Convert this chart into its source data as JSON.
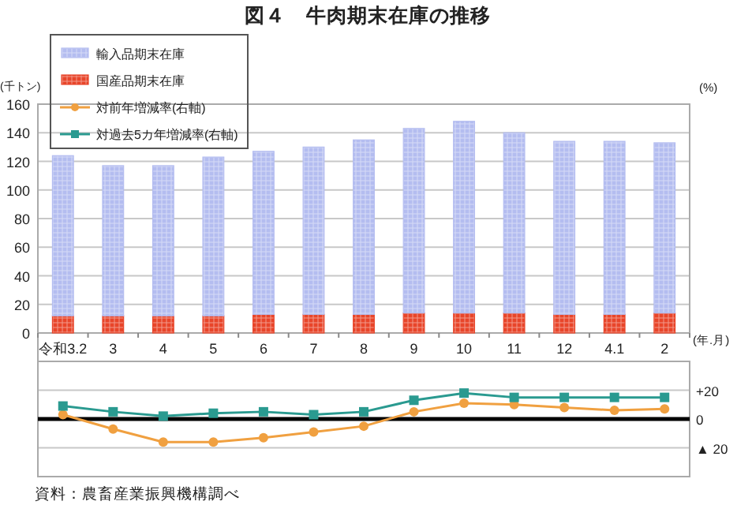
{
  "chart_data": [
    {
      "type": "bar",
      "title": "図４　牛肉期末在庫の推移",
      "ylabel": "(千トン)",
      "y2label": "(%)",
      "xlabel": "(年.月)",
      "categories": [
        "令和3.2",
        "3",
        "4",
        "5",
        "6",
        "7",
        "8",
        "9",
        "10",
        "11",
        "12",
        "4.1",
        "2"
      ],
      "stacked": true,
      "series": [
        {
          "name": "国産品期末在庫",
          "color": "#e8452a",
          "values": [
            12,
            12,
            12,
            12,
            13,
            13,
            13,
            14,
            14,
            14,
            13,
            13,
            14
          ]
        },
        {
          "name": "輸入品期末在庫",
          "color": "#b4bdf0",
          "values": [
            112,
            105,
            105,
            111,
            114,
            117,
            122,
            129,
            134,
            126,
            121,
            121,
            119
          ]
        }
      ],
      "ylim": [
        0,
        160
      ],
      "yticks": [
        0,
        20,
        40,
        60,
        80,
        100,
        120,
        140,
        160
      ],
      "grid": "y",
      "legend": "top left"
    },
    {
      "type": "line",
      "categories": [
        null,
        null,
        null,
        null,
        null,
        null,
        null,
        null,
        null,
        null,
        null,
        null,
        null
      ],
      "tick_labels": "y",
      "series": [
        {
          "name": "対前年増減率(右軸)",
          "color": "#f0a040",
          "marker": "circle",
          "values": [
            3,
            -7,
            -16,
            -16,
            -13,
            -9,
            -5,
            5,
            11,
            10,
            8,
            6,
            7
          ]
        },
        {
          "name": "対過去5カ年増減率(右軸)",
          "color": "#2a9a90",
          "marker": "square",
          "values": [
            9,
            5,
            2,
            4,
            5,
            3,
            5,
            13,
            18,
            15,
            15,
            15,
            15
          ]
        }
      ],
      "ylim": [
        -40,
        40
      ],
      "yticks": [
        {
          "value": -20,
          "label": "▲ 20"
        },
        0,
        {
          "value": 20,
          "label": "+20"
        }
      ],
      "grid": "y",
      "ref_lines": [
        {
          "axis": "y",
          "value": 0,
          "color": "#000000"
        }
      ],
      "legend": "top",
      "annotations": [
        "資料：農畜産業振興機構調べ"
      ]
    }
  ]
}
